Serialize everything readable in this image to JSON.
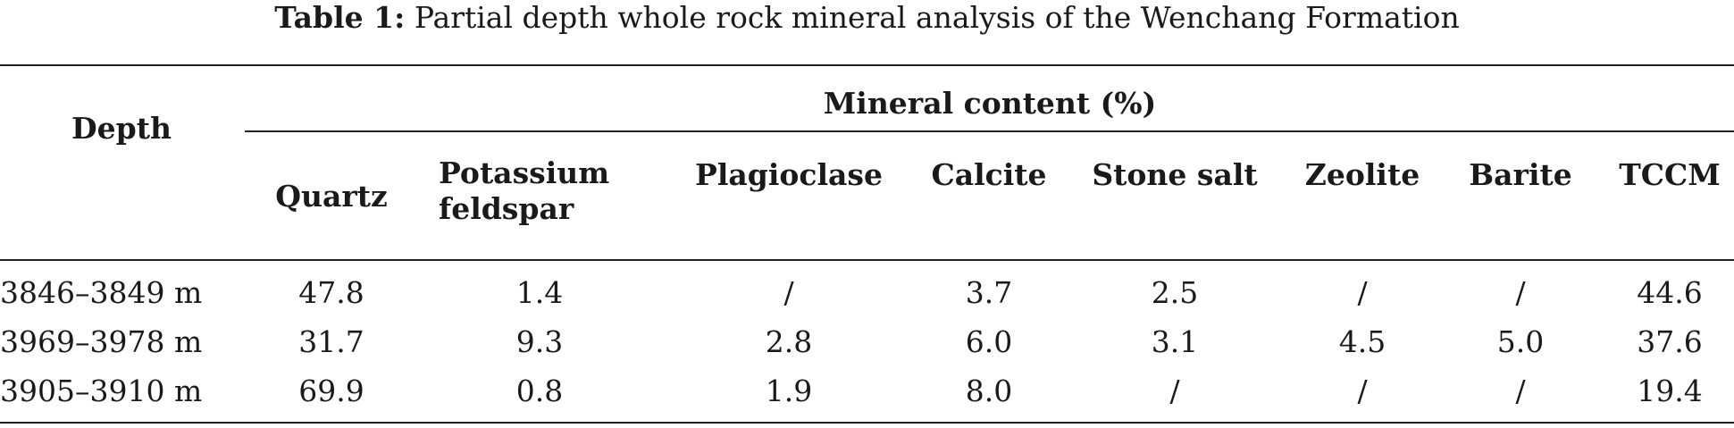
{
  "caption": {
    "label": "Table 1:",
    "text": "Partial depth whole rock mineral analysis of the Wenchang Formation"
  },
  "header": {
    "depth": "Depth",
    "group": "Mineral content (%)",
    "columns": [
      "Quartz",
      "Potassium feldspar",
      "Plagioclase",
      "Calcite",
      "Stone salt",
      "Zeolite",
      "Barite",
      "TCCM"
    ],
    "potassium_line1": "Potassium",
    "potassium_line2": "feldspar"
  },
  "rows": [
    {
      "depth": "3846–3849 m",
      "values": [
        "47.8",
        "1.4",
        "/",
        "3.7",
        "2.5",
        "/",
        "/",
        "44.6"
      ]
    },
    {
      "depth": "3969–3978 m",
      "values": [
        "31.7",
        "9.3",
        "2.8",
        "6.0",
        "3.1",
        "4.5",
        "5.0",
        "37.6"
      ]
    },
    {
      "depth": "3905–3910 m",
      "values": [
        "69.9",
        "0.8",
        "1.9",
        "8.0",
        "/",
        "/",
        "/",
        "19.4"
      ]
    }
  ]
}
